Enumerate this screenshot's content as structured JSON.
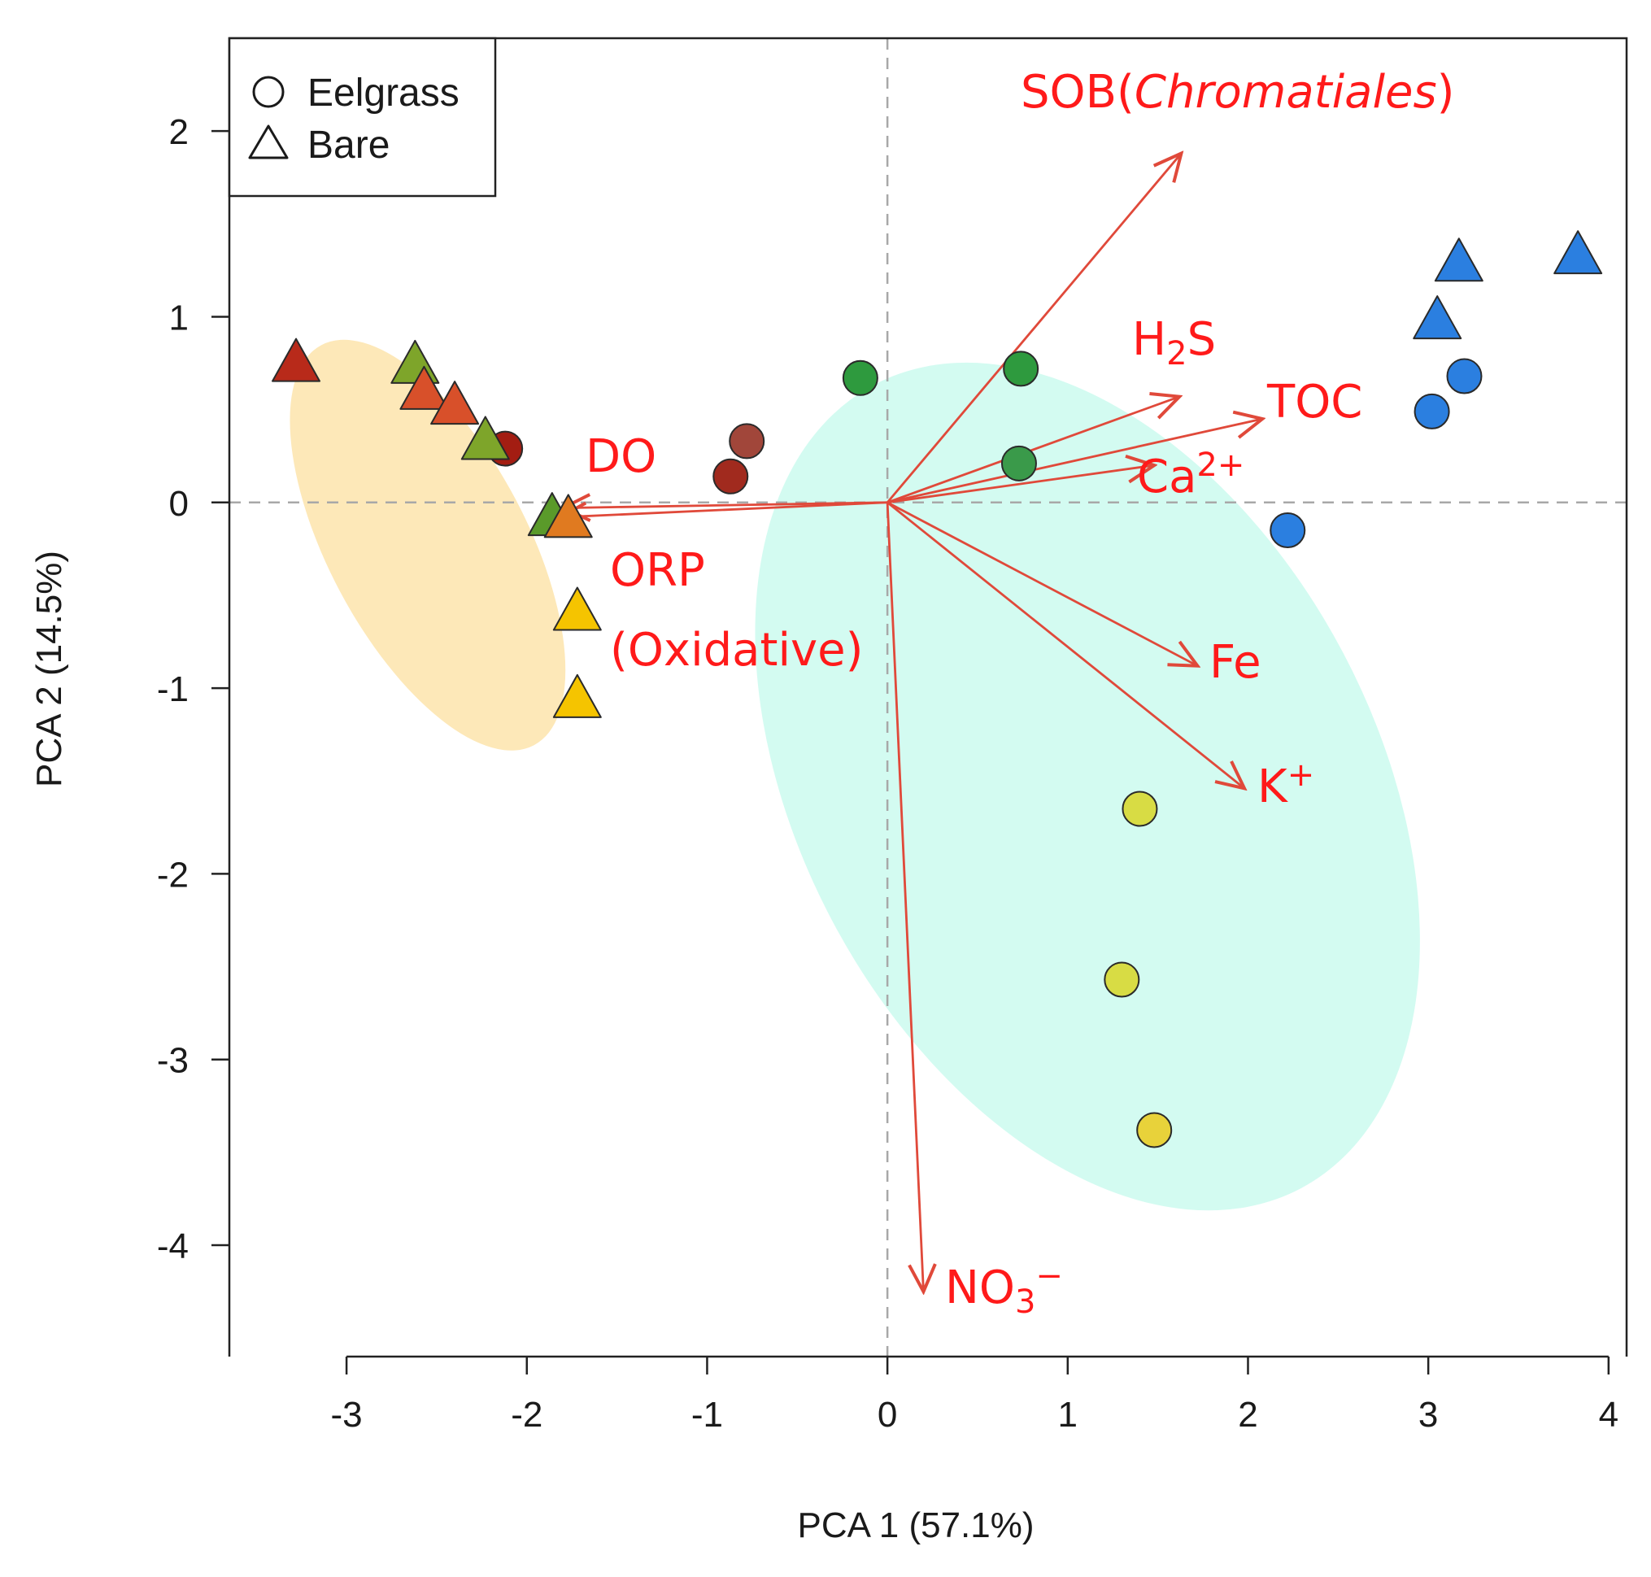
{
  "chart_data": {
    "type": "scatter",
    "subtype": "pca-biplot",
    "title": "",
    "xlabel": "PCA 1 (57.1%)",
    "ylabel": "PCA 2 (14.5%)",
    "xlim": [
      -3.65,
      4.1
    ],
    "ylim": [
      -4.6,
      2.5
    ],
    "xticks": [
      -3,
      -2,
      -1,
      0,
      1,
      2,
      3,
      4
    ],
    "yticks": [
      -4,
      -3,
      -2,
      -1,
      0,
      1,
      2
    ],
    "xtick_labels": [
      "-3",
      "-2",
      "-1",
      "0",
      "1",
      "2",
      "3",
      "4"
    ],
    "ytick_labels": [
      "-4",
      "-3",
      "-2",
      "-1",
      "0",
      "1",
      "2"
    ],
    "reference_lines": {
      "x": 0,
      "y": 0,
      "style": "dashed"
    },
    "legend": {
      "position": "top-left",
      "entries": [
        {
          "label": "Eelgrass",
          "shape": "circle"
        },
        {
          "label": "Bare",
          "shape": "triangle"
        }
      ]
    },
    "ellipses": [
      {
        "name": "bare-cluster",
        "center": [
          -2.55,
          -0.23
        ],
        "semi_axes": [
          0.55,
          1.22
        ],
        "rotation_deg": 28,
        "color": "#fde8b8"
      },
      {
        "name": "eelgrass-cluster",
        "center": [
          1.11,
          -1.53
        ],
        "semi_axes": [
          1.6,
          2.45
        ],
        "rotation_deg": 28,
        "color": "#d3fbf1"
      }
    ],
    "series": [
      {
        "name": "Eelgrass",
        "shape": "circle",
        "points": [
          {
            "x": -2.12,
            "y": 0.29,
            "color": "#a31d12"
          },
          {
            "x": -0.78,
            "y": 0.33,
            "color": "#a1463a"
          },
          {
            "x": -0.87,
            "y": 0.14,
            "color": "#a12a1e"
          },
          {
            "x": -0.15,
            "y": 0.67,
            "color": "#2e9a3e"
          },
          {
            "x": 0.74,
            "y": 0.72,
            "color": "#2e9a3e"
          },
          {
            "x": 0.73,
            "y": 0.21,
            "color": "#3a9a4a"
          },
          {
            "x": 3.02,
            "y": 0.49,
            "color": "#2b7fe0"
          },
          {
            "x": 3.2,
            "y": 0.68,
            "color": "#2b7fe0"
          },
          {
            "x": 2.22,
            "y": -0.15,
            "color": "#2b7fe0"
          },
          {
            "x": 1.4,
            "y": -1.65,
            "color": "#d8dc44"
          },
          {
            "x": 1.3,
            "y": -2.57,
            "color": "#d8dc44"
          },
          {
            "x": 1.48,
            "y": -3.38,
            "color": "#e8d23a"
          }
        ]
      },
      {
        "name": "Bare",
        "shape": "triangle",
        "points": [
          {
            "x": -3.28,
            "y": 0.74,
            "color": "#b82a1a"
          },
          {
            "x": -2.62,
            "y": 0.73,
            "color": "#7ea52a"
          },
          {
            "x": -2.57,
            "y": 0.59,
            "color": "#d8502a"
          },
          {
            "x": -2.4,
            "y": 0.51,
            "color": "#d8502a"
          },
          {
            "x": -2.23,
            "y": 0.32,
            "color": "#7ea52a"
          },
          {
            "x": -1.86,
            "y": -0.09,
            "color": "#5a9a2a"
          },
          {
            "x": -1.77,
            "y": -0.1,
            "color": "#e07a20"
          },
          {
            "x": -1.72,
            "y": -0.6,
            "color": "#f5c400"
          },
          {
            "x": -1.72,
            "y": -1.07,
            "color": "#f5c400"
          },
          {
            "x": 3.17,
            "y": 1.28,
            "color": "#2b7fe0"
          },
          {
            "x": 3.05,
            "y": 0.97,
            "color": "#2b7fe0"
          },
          {
            "x": 3.83,
            "y": 1.32,
            "color": "#2b7fe0"
          }
        ]
      }
    ],
    "vectors": [
      {
        "name": "SOB(Chromatiales)",
        "x": 1.63,
        "y": 1.88
      },
      {
        "name": "H2S",
        "x": 1.62,
        "y": 0.57
      },
      {
        "name": "TOC",
        "x": 2.08,
        "y": 0.45
      },
      {
        "name": "Ca2+",
        "x": 1.48,
        "y": 0.2
      },
      {
        "name": "Fe",
        "x": 1.72,
        "y": -0.88
      },
      {
        "name": "K+",
        "x": 1.98,
        "y": -1.54
      },
      {
        "name": "NO3−",
        "x": 0.2,
        "y": -4.25
      },
      {
        "name": "DO",
        "x": -1.8,
        "y": -0.03
      },
      {
        "name": "ORP (Oxidative)",
        "x": -1.82,
        "y": -0.08
      }
    ],
    "vector_labels": [
      {
        "id": "sob",
        "parts": [
          {
            "t": "SOB("
          },
          {
            "t": "Chromatiales",
            "italic": true
          },
          {
            "t": ")"
          }
        ]
      },
      {
        "id": "h2s",
        "parts": [
          {
            "t": "H"
          },
          {
            "t": "2",
            "sub": true
          },
          {
            "t": "S"
          }
        ]
      },
      {
        "id": "toc",
        "parts": [
          {
            "t": "TOC"
          }
        ]
      },
      {
        "id": "ca",
        "parts": [
          {
            "t": "Ca"
          },
          {
            "t": "2+",
            "sup": true
          }
        ]
      },
      {
        "id": "fe",
        "parts": [
          {
            "t": "Fe"
          }
        ]
      },
      {
        "id": "k",
        "parts": [
          {
            "t": "K"
          },
          {
            "t": "+",
            "sup": true
          }
        ]
      },
      {
        "id": "no3",
        "parts": [
          {
            "t": "NO"
          },
          {
            "t": "3",
            "sub": true
          },
          {
            "t": "−",
            "sup": true
          }
        ]
      },
      {
        "id": "do",
        "parts": [
          {
            "t": "DO"
          }
        ]
      },
      {
        "id": "orp1",
        "parts": [
          {
            "t": "ORP"
          }
        ]
      },
      {
        "id": "orp2",
        "parts": [
          {
            "t": "(Oxidative)"
          }
        ]
      }
    ],
    "colors": {
      "vector": "#e0493a",
      "vector_label": "#ff1a1a",
      "reference_line": "#a8a8a8",
      "frame": "#222222"
    }
  }
}
